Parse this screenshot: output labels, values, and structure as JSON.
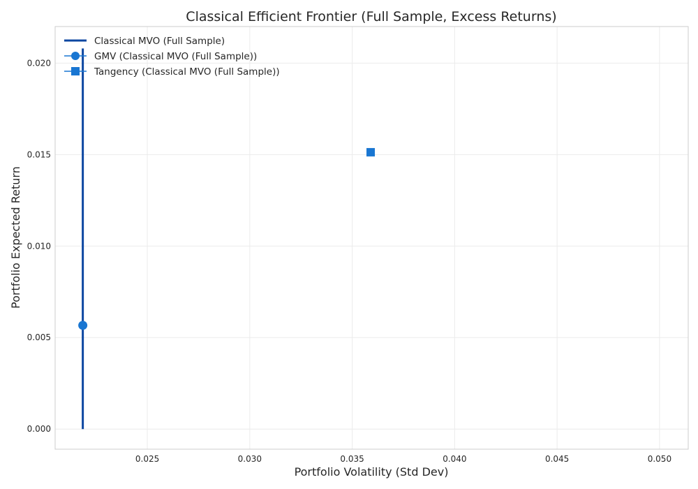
{
  "chart_data": {
    "type": "line",
    "title": "Classical Efficient Frontier (Full Sample, Excess Returns)",
    "xlabel": "Portfolio Volatility (Std Dev)",
    "ylabel": "Portfolio Expected Return",
    "xlim": [
      0.0205,
      0.0514
    ],
    "ylim": [
      -0.0011,
      0.022
    ],
    "xticks": [
      0.025,
      0.03,
      0.035,
      0.04,
      0.045,
      0.05
    ],
    "xtick_labels": [
      "0.025",
      "0.030",
      "0.035",
      "0.040",
      "0.045",
      "0.050"
    ],
    "yticks": [
      0.0,
      0.005,
      0.01,
      0.015,
      0.02
    ],
    "ytick_labels": [
      "0.000",
      "0.005",
      "0.010",
      "0.015",
      "0.020"
    ],
    "grid": true,
    "legend_position": "top-left",
    "frontier": {
      "name": "Classical MVO (Full Sample)",
      "color": "#0d47a1",
      "gmv_volatility": 0.02185,
      "gmv_return": 0.00567,
      "curvature": 6.6e-06,
      "return_range": [
        0.0,
        0.0208
      ]
    },
    "points": [
      {
        "name": "GMV (Classical MVO (Full Sample))",
        "marker": "circle",
        "color": "#1976d2",
        "x": 0.02185,
        "y": 0.00567
      },
      {
        "name": "Tangency (Classical MVO (Full Sample))",
        "marker": "square",
        "color": "#1976d2",
        "x": 0.0359,
        "y": 0.01513
      }
    ]
  }
}
